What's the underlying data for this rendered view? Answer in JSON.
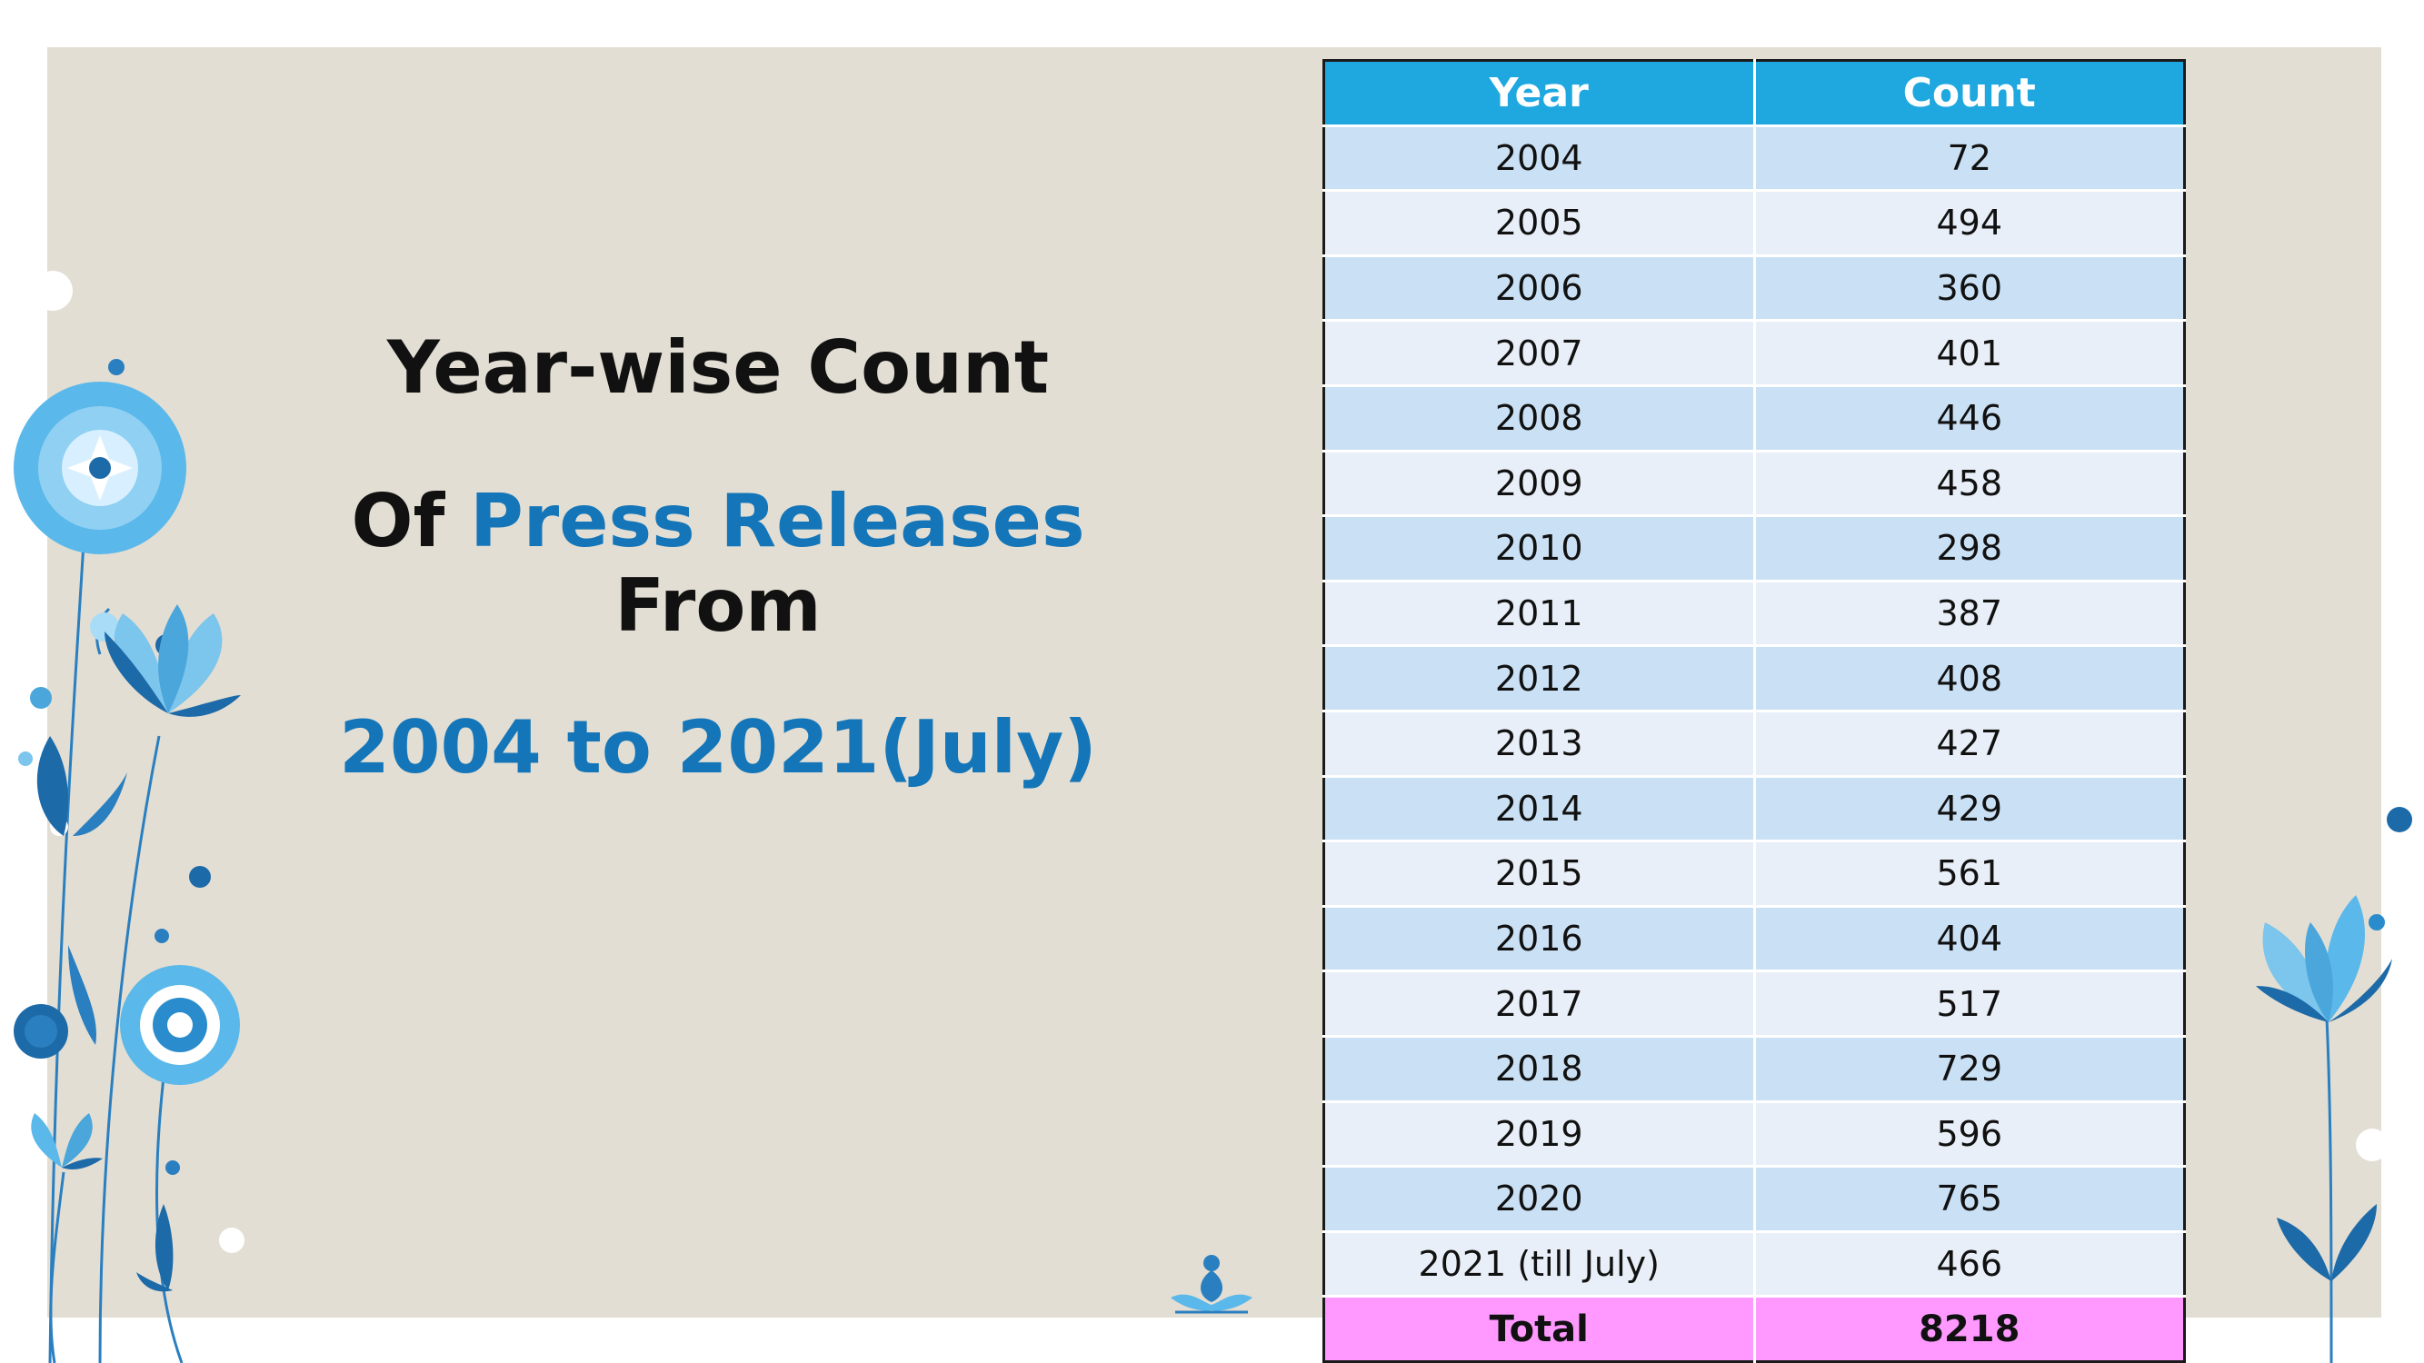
{
  "title": {
    "line1": "Year-wise Count",
    "line2_prefix": "Of ",
    "line2_highlight": "Press Releases",
    "line3": "From",
    "line4": "2004 to 2021(July)"
  },
  "table": {
    "headers": [
      "Year",
      "Count"
    ],
    "rows": [
      [
        "2004",
        "72"
      ],
      [
        "2005",
        "494"
      ],
      [
        "2006",
        "360"
      ],
      [
        "2007",
        "401"
      ],
      [
        "2008",
        "446"
      ],
      [
        "2009",
        "458"
      ],
      [
        "2010",
        "298"
      ],
      [
        "2011",
        "387"
      ],
      [
        "2012",
        "408"
      ],
      [
        "2013",
        "427"
      ],
      [
        "2014",
        "429"
      ],
      [
        "2015",
        "561"
      ],
      [
        "2016",
        "404"
      ],
      [
        "2017",
        "517"
      ],
      [
        "2018",
        "729"
      ],
      [
        "2019",
        "596"
      ],
      [
        "2020",
        "765"
      ],
      [
        "2021 (till July)",
        "466"
      ]
    ],
    "total": [
      "Total",
      "8218"
    ]
  },
  "colors": {
    "slide_background": "#e3ded3",
    "header_blue": "#1fa8e0",
    "row_dark": "#cae0f4",
    "row_light": "#e9eff8",
    "total_pink": "#ff99ff",
    "accent_text_blue": "#1476b9"
  },
  "icons": [
    "flower-decoration-left",
    "flower-decoration-right",
    "meditation-logo-icon"
  ]
}
